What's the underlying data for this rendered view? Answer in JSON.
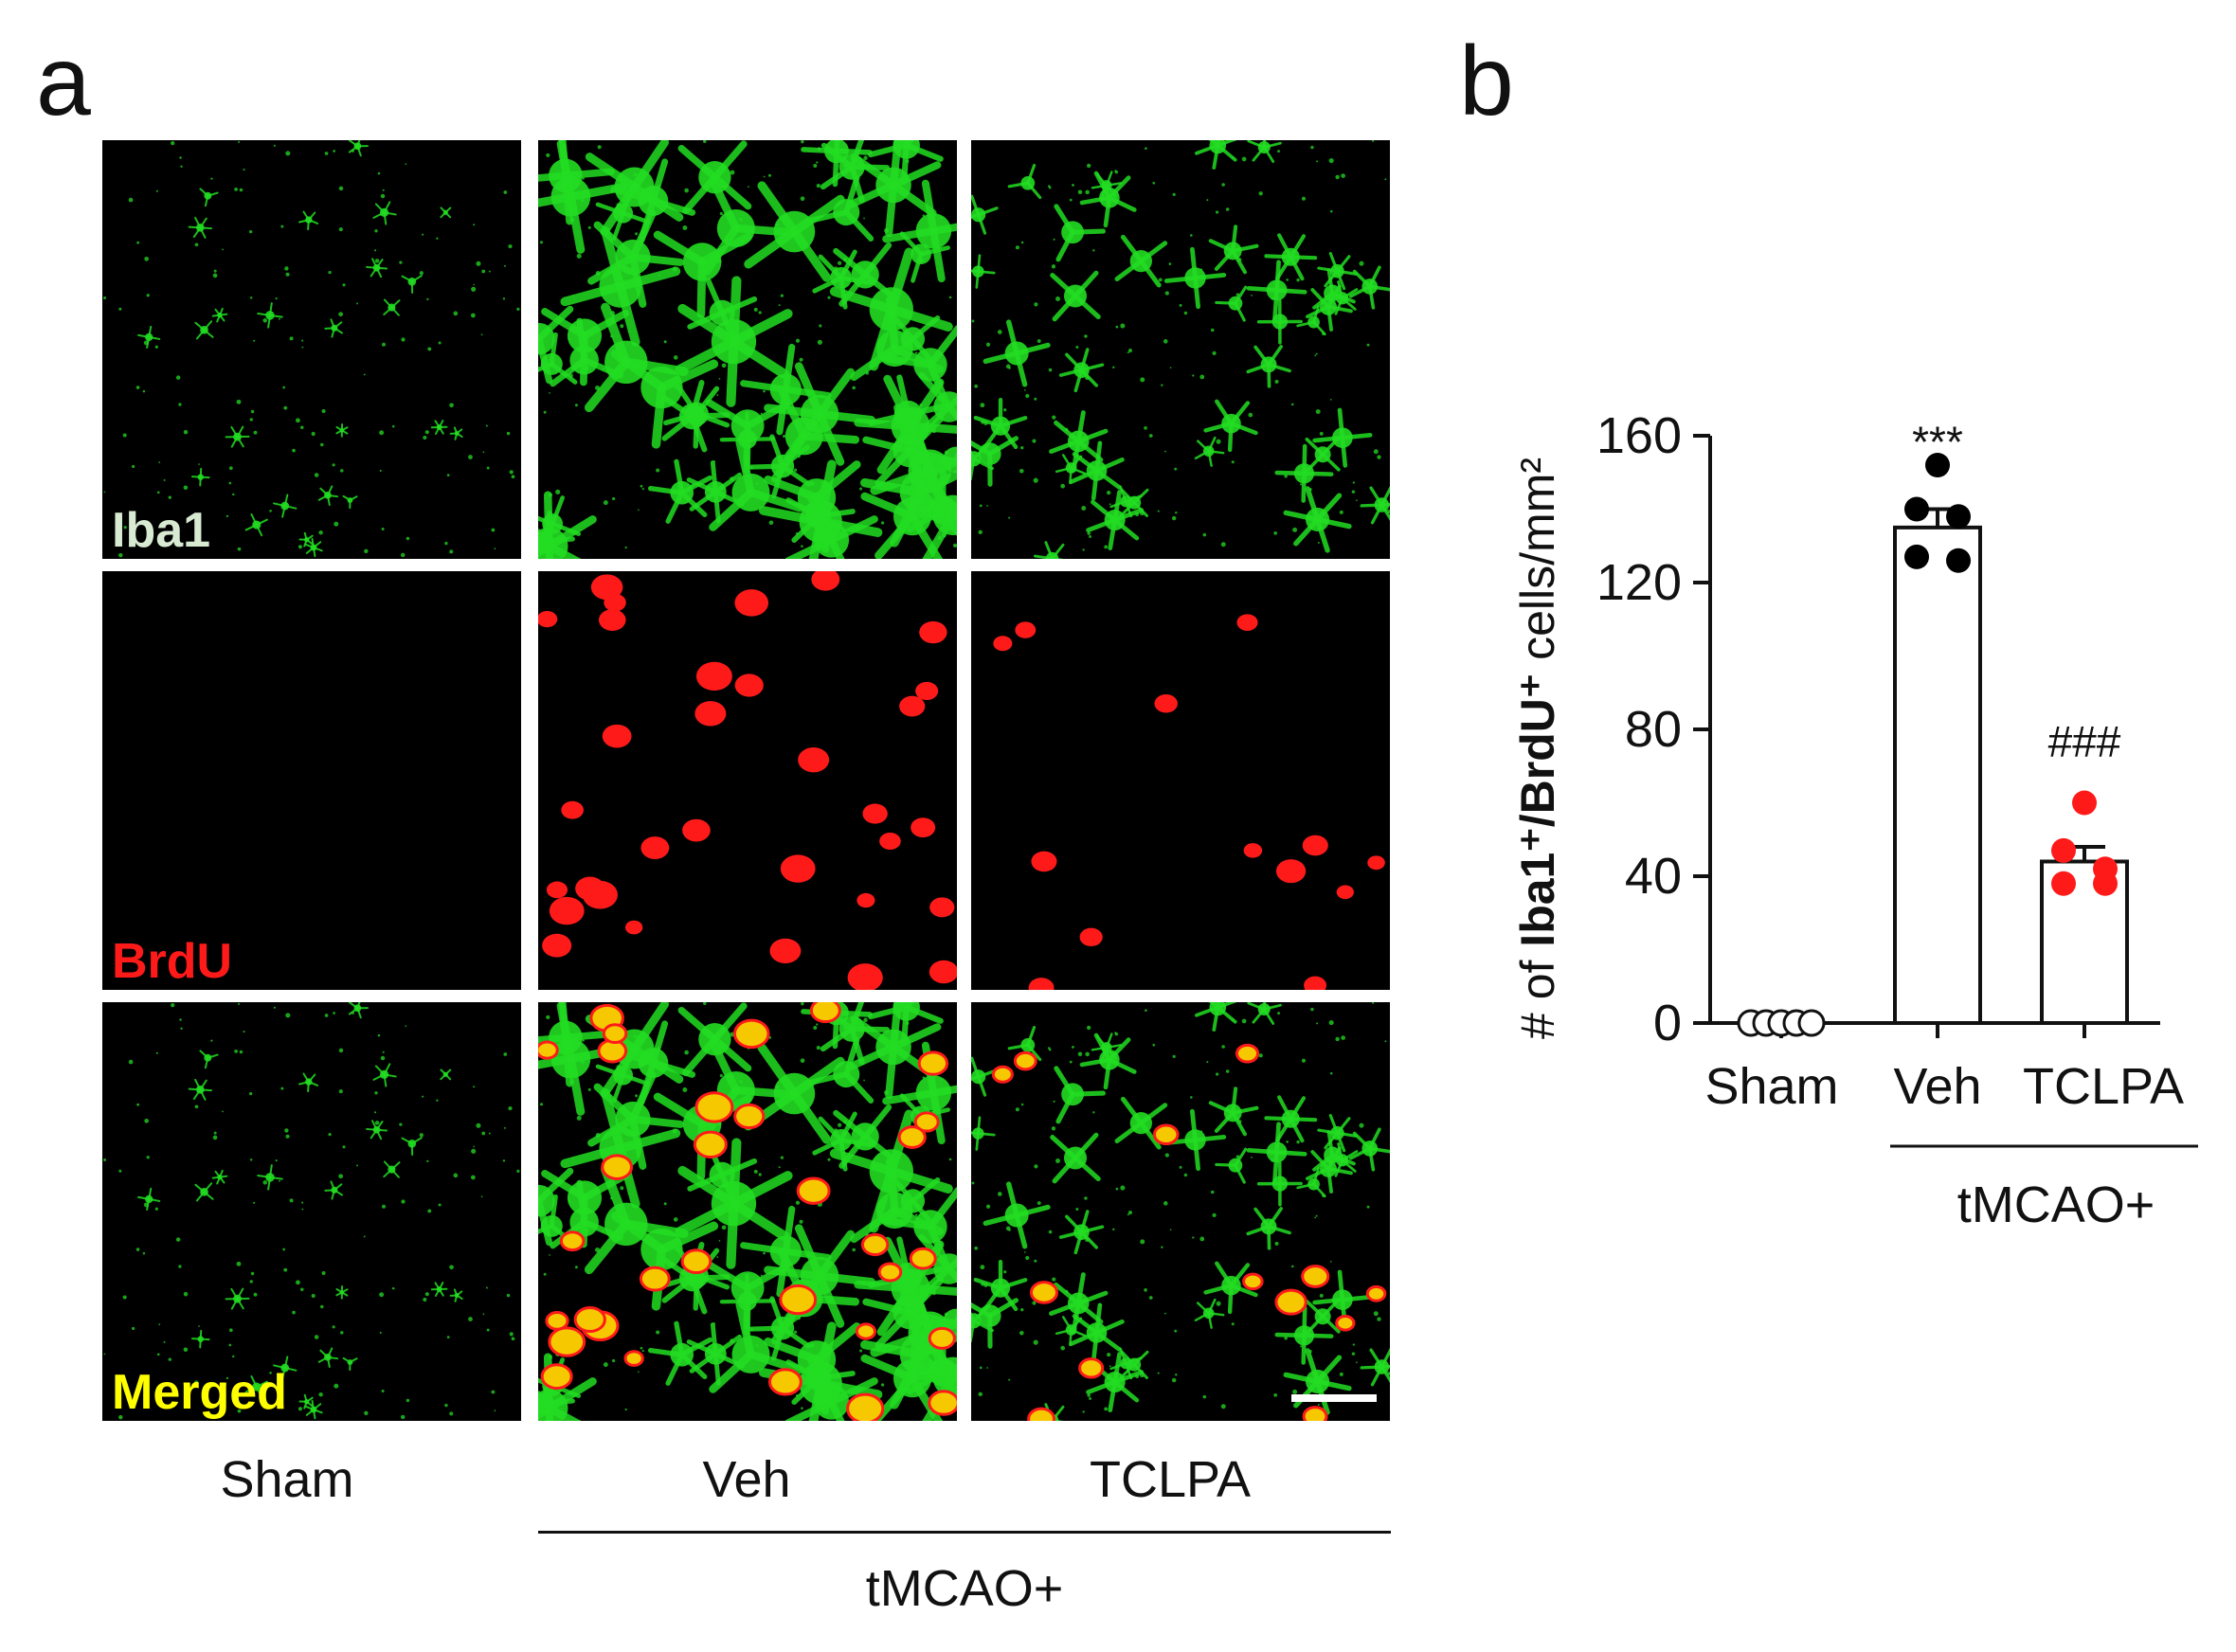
{
  "panel_a": {
    "letter": "a",
    "row_labels": [
      {
        "text": "Iba1",
        "color": "#d9ead3"
      },
      {
        "text": "BrdU",
        "color": "#ff1a1a"
      },
      {
        "text": "Merged",
        "color": "#ffff00"
      }
    ],
    "columns": [
      "Sham",
      "Veh",
      "TCLPA"
    ],
    "group_label": "tMCAO+",
    "channel_colors": {
      "green": "#22dd22",
      "red": "#ff1a1a",
      "yellow": "#f5c800"
    }
  },
  "panel_b": {
    "letter": "b",
    "chart_data": {
      "type": "bar",
      "categories": [
        "Sham",
        "Veh",
        "TCLPA"
      ],
      "values": [
        0,
        135,
        44
      ],
      "sem": [
        0,
        5,
        4
      ],
      "points": [
        [
          0,
          0,
          0,
          0,
          0
        ],
        [
          152,
          140,
          138,
          127,
          126
        ],
        [
          60,
          47,
          42,
          38,
          38
        ]
      ],
      "point_colors": [
        "#ffffff",
        "#000000",
        "#ff1a1a"
      ],
      "significance": [
        "",
        "***",
        "###"
      ],
      "ylabel_prefix": "# of ",
      "ylabel_bold": "Iba1⁺/BrdU⁺",
      "ylabel_suffix": " cells/mm²",
      "yticks": [
        0,
        40,
        80,
        120,
        160
      ],
      "ylim": [
        0,
        160
      ],
      "group_label": "tMCAO+"
    }
  }
}
